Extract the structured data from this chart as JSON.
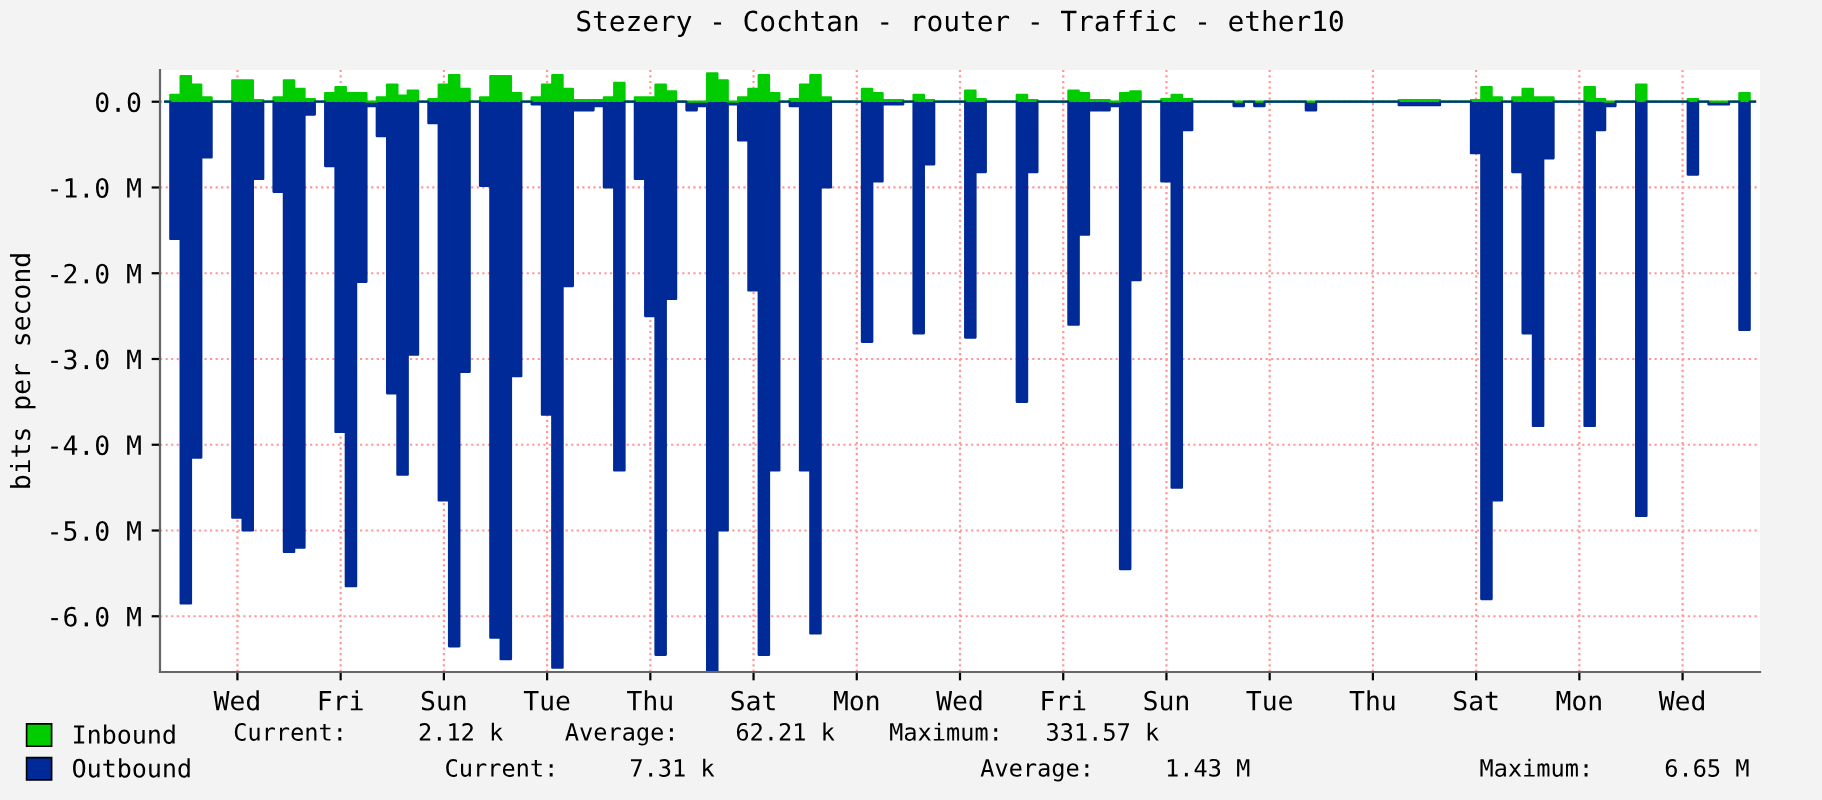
{
  "chart_data": {
    "type": "area",
    "title": "Stezery - Cochtan - router - Traffic - ether10",
    "ylabel": "bits per second",
    "categories": [
      null,
      null,
      null,
      null,
      null,
      null,
      null,
      "Wed",
      null,
      null,
      null,
      null,
      null,
      null,
      null,
      null,
      null,
      "Fri",
      null,
      null,
      null,
      null,
      null,
      null,
      null,
      null,
      null,
      "Sun",
      null,
      null,
      null,
      null,
      null,
      null,
      null,
      null,
      null,
      "Tue",
      null,
      null,
      null,
      null,
      null,
      null,
      null,
      null,
      null,
      "Thu",
      null,
      null,
      null,
      null,
      null,
      null,
      null,
      null,
      null,
      "Sat",
      null,
      null,
      null,
      null,
      null,
      null,
      null,
      null,
      null,
      "Mon",
      null,
      null,
      null,
      null,
      null,
      null,
      null,
      null,
      null,
      "Wed",
      null,
      null,
      null,
      null,
      null,
      null,
      null,
      null,
      null,
      "Fri",
      null,
      null,
      null,
      null,
      null,
      null,
      null,
      null,
      null,
      "Sun",
      null,
      null,
      null,
      null,
      null,
      null,
      null,
      null,
      null,
      "Tue",
      null,
      null,
      null,
      null,
      null,
      null,
      null,
      null,
      null,
      "Thu",
      null,
      null,
      null,
      null,
      null,
      null,
      null,
      null,
      null,
      "Sat",
      null,
      null,
      null,
      null,
      null,
      null,
      null,
      null,
      null,
      "Mon",
      null,
      null,
      null,
      null,
      null,
      null,
      null,
      null,
      null,
      "Wed",
      null,
      null,
      null,
      null,
      null,
      null,
      null
    ],
    "ylim": [
      -6.65,
      0.37
    ],
    "yticks": [
      {
        "value": 0,
        "label": "0.0"
      },
      {
        "value": -1,
        "label": "-1.0 M"
      },
      {
        "value": -2,
        "label": "-2.0 M"
      },
      {
        "value": -3,
        "label": "-3.0 M"
      },
      {
        "value": -4,
        "label": "-4.0 M"
      },
      {
        "value": -5,
        "label": "-5.0 M"
      },
      {
        "value": -6,
        "label": "-6.0 M"
      }
    ],
    "grid": true,
    "legend": "bottom left",
    "series": [
      {
        "name": "Inbound",
        "color": "#00cc00",
        "values": [
          0,
          0.08,
          0.3,
          0.2,
          0.05,
          0,
          0,
          0.25,
          0.25,
          0.02,
          0,
          0.05,
          0.25,
          0.15,
          0.03,
          0,
          0.1,
          0.17,
          0.1,
          0.1,
          0,
          0.05,
          0.2,
          0.07,
          0.13,
          0,
          0.03,
          0.2,
          0.31,
          0.15,
          0,
          0.05,
          0.3,
          0.3,
          0.1,
          0,
          0.05,
          0.2,
          0.31,
          0.15,
          0.02,
          0.02,
          0.02,
          0.05,
          0.22,
          0,
          0.05,
          0.05,
          0.2,
          0.12,
          0,
          0,
          0,
          0.33,
          0.25,
          0,
          0.05,
          0.15,
          0.31,
          0.1,
          0,
          0.03,
          0.2,
          0.31,
          0.05,
          0,
          0,
          0,
          0.15,
          0.1,
          0.02,
          0.02,
          0,
          0.08,
          0.02,
          0,
          0,
          0,
          0.13,
          0.03,
          0,
          0,
          0,
          0.08,
          0.02,
          0,
          0,
          0,
          0.13,
          0.1,
          0.02,
          0.02,
          0,
          0.1,
          0.12,
          0,
          0,
          0.03,
          0.08,
          0.03,
          0,
          0,
          0,
          0,
          0,
          0,
          0,
          0,
          0,
          0,
          0,
          0,
          0,
          0,
          0,
          0,
          0,
          0,
          0,
          0,
          0.02,
          0.02,
          0.02,
          0.02,
          0,
          0,
          0,
          0.02,
          0.17,
          0.05,
          0,
          0.05,
          0.15,
          0.05,
          0.05,
          0,
          0,
          0,
          0.17,
          0.03,
          0,
          0,
          0,
          0.2,
          0,
          0,
          0,
          0,
          0.03,
          0,
          0,
          0,
          0,
          0.1,
          0
        ]
      },
      {
        "name": "Outbound",
        "color": "#002a97",
        "values": [
          0,
          -1.6,
          -5.85,
          -4.15,
          -0.65,
          0,
          0,
          -4.85,
          -5.0,
          -0.9,
          0,
          -1.05,
          -5.25,
          -5.2,
          -0.15,
          0,
          -0.75,
          -3.85,
          -5.65,
          -2.1,
          -0.05,
          -0.4,
          -3.4,
          -4.35,
          -2.95,
          0,
          -0.25,
          -4.65,
          -6.35,
          -3.15,
          0,
          -0.98,
          -6.25,
          -6.5,
          -3.2,
          0,
          -0.03,
          -3.65,
          -6.6,
          -2.15,
          -0.1,
          -0.1,
          -0.05,
          -1.0,
          -4.3,
          0,
          -0.9,
          -2.5,
          -6.45,
          -2.3,
          0,
          -0.1,
          -0.05,
          -6.65,
          -5.0,
          -0.03,
          -0.45,
          -2.2,
          -6.45,
          -4.3,
          0,
          -0.05,
          -4.3,
          -6.2,
          -1.0,
          0,
          0,
          0,
          -2.8,
          -0.93,
          -0.03,
          -0.03,
          0,
          -2.7,
          -0.73,
          0,
          0,
          0,
          -2.75,
          -0.82,
          0,
          0,
          0,
          -3.5,
          -0.82,
          0,
          0,
          0,
          -2.6,
          -1.55,
          -0.1,
          -0.1,
          -0.05,
          -5.45,
          -2.08,
          0,
          0,
          -0.93,
          -4.5,
          -0.33,
          0,
          0,
          0,
          0,
          -0.05,
          0,
          -0.05,
          0,
          0,
          0,
          0,
          -0.1,
          0,
          0,
          0,
          0,
          0,
          0,
          0,
          0,
          -0.04,
          -0.04,
          -0.04,
          -0.04,
          0,
          0,
          0,
          -0.6,
          -5.8,
          -4.65,
          0,
          -0.82,
          -2.7,
          -3.78,
          -0.66,
          0,
          0,
          0,
          -3.78,
          -0.33,
          -0.05,
          0,
          0,
          -4.83,
          0,
          0,
          0,
          0,
          -0.85,
          0,
          -0.03,
          -0.03,
          0,
          -2.66,
          0
        ]
      }
    ],
    "annotations": [
      "Current:     2.12 k",
      "Average:    62.21 k",
      "Maximum:   331.57 k",
      "Current:     7.31 k",
      "Average:     1.43 M",
      "Maximum:     6.65 M"
    ]
  }
}
